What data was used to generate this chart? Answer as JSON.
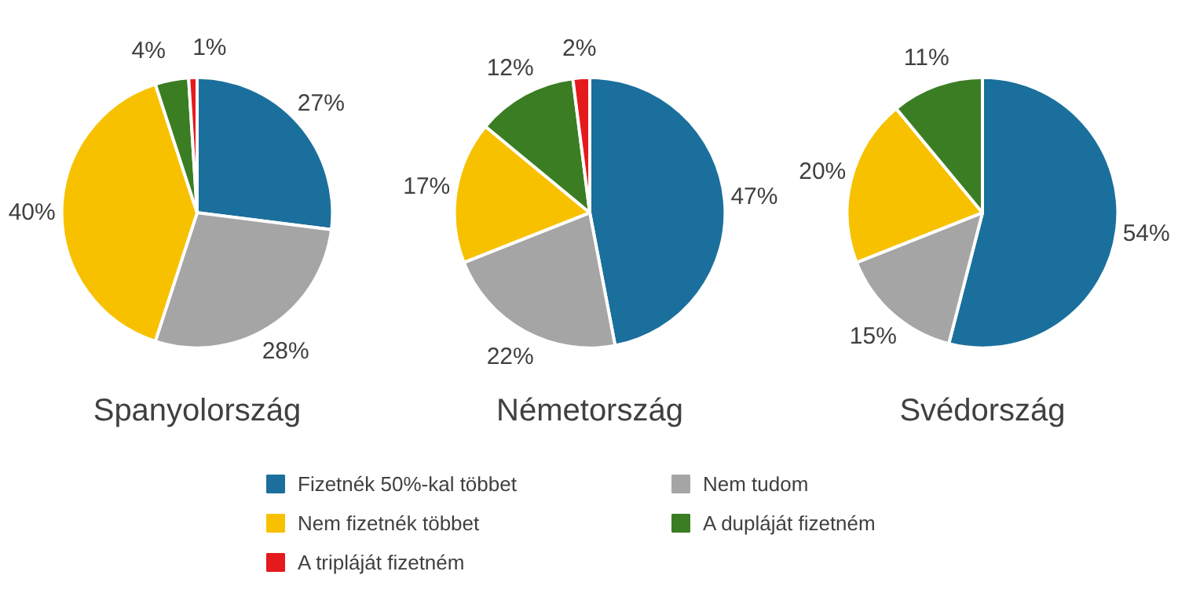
{
  "chart_data": [
    {
      "type": "pie",
      "title": "Spanyolország",
      "categories": [
        "Fizetnék 50%-kal többet",
        "Nem tudom",
        "Nem fizetnék többet",
        "A dupláját fizetném",
        "A tripláját fizetném"
      ],
      "values": [
        27,
        28,
        40,
        4,
        1
      ],
      "colors": [
        "#1b6f9c",
        "#a5a5a5",
        "#f7c100",
        "#3b7d23",
        "#e41a1c"
      ],
      "value_labels": [
        "27%",
        "28%",
        "40%",
        "4%",
        "1%"
      ],
      "legend": "bottom"
    },
    {
      "type": "pie",
      "title": "Németország",
      "categories": [
        null,
        null,
        null,
        null,
        null
      ],
      "values": [
        47,
        22,
        17,
        12,
        2
      ],
      "colors": [
        "#1b6f9c",
        "#a5a5a5",
        "#f7c100",
        "#3b7d23",
        "#e41a1c"
      ],
      "value_labels": [
        "47%",
        "22%",
        "17%",
        "12%",
        "2%"
      ]
    },
    {
      "type": "pie",
      "title": "Svédország",
      "categories": [
        null,
        null,
        null,
        null
      ],
      "values": [
        54,
        15,
        20,
        11
      ],
      "colors": [
        "#1b6f9c",
        "#a5a5a5",
        "#f7c100",
        "#3b7d23"
      ],
      "value_labels": [
        "54%",
        "15%",
        "20%",
        "11%"
      ]
    }
  ]
}
